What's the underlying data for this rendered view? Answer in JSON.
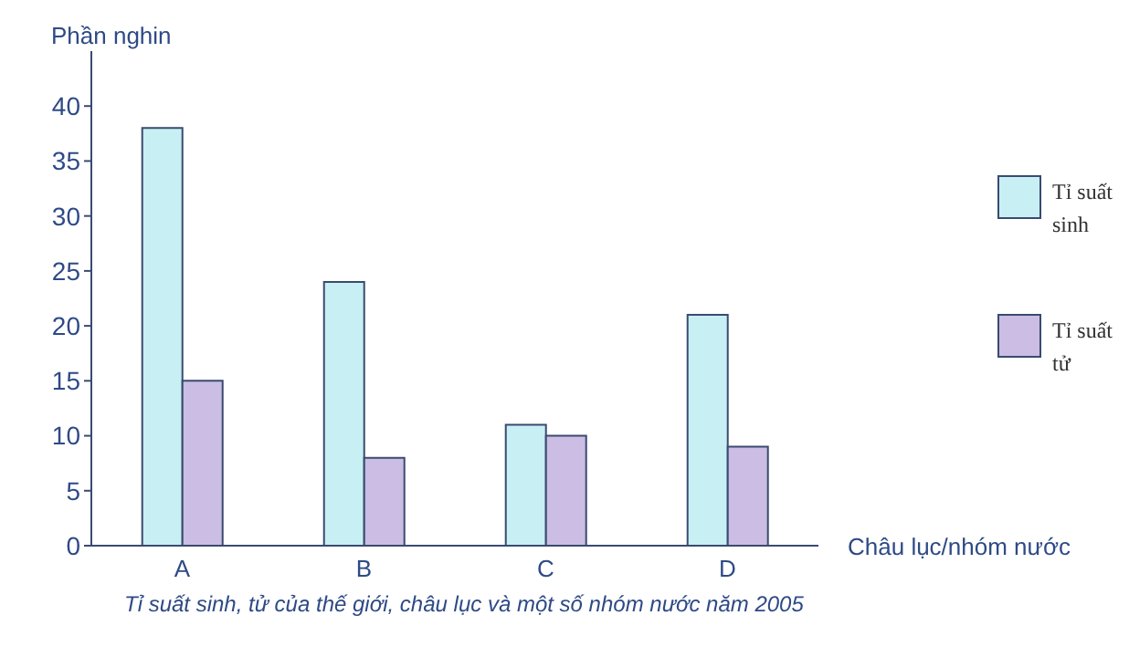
{
  "chart_data": {
    "type": "bar",
    "ylabel": "Phần nghin",
    "xlabel": "Châu lục/nhóm nước",
    "categories": [
      "A",
      "B",
      "C",
      "D"
    ],
    "series": [
      {
        "name": "Tỉ suất sinh",
        "color": "#c8f0f4",
        "values": [
          38,
          24,
          11,
          21
        ]
      },
      {
        "name": "Tỉ suất tử",
        "color": "#cbbde3",
        "values": [
          15,
          8,
          10,
          9
        ]
      }
    ],
    "ylim": [
      0,
      45
    ],
    "yticks": [
      0,
      5,
      10,
      15,
      20,
      25,
      30,
      35,
      40
    ],
    "grid": false,
    "legend": "right",
    "annotations": [
      "Tỉ suất sinh, tử của thế giới, châu lục và một số nhóm nước năm 2005"
    ]
  }
}
